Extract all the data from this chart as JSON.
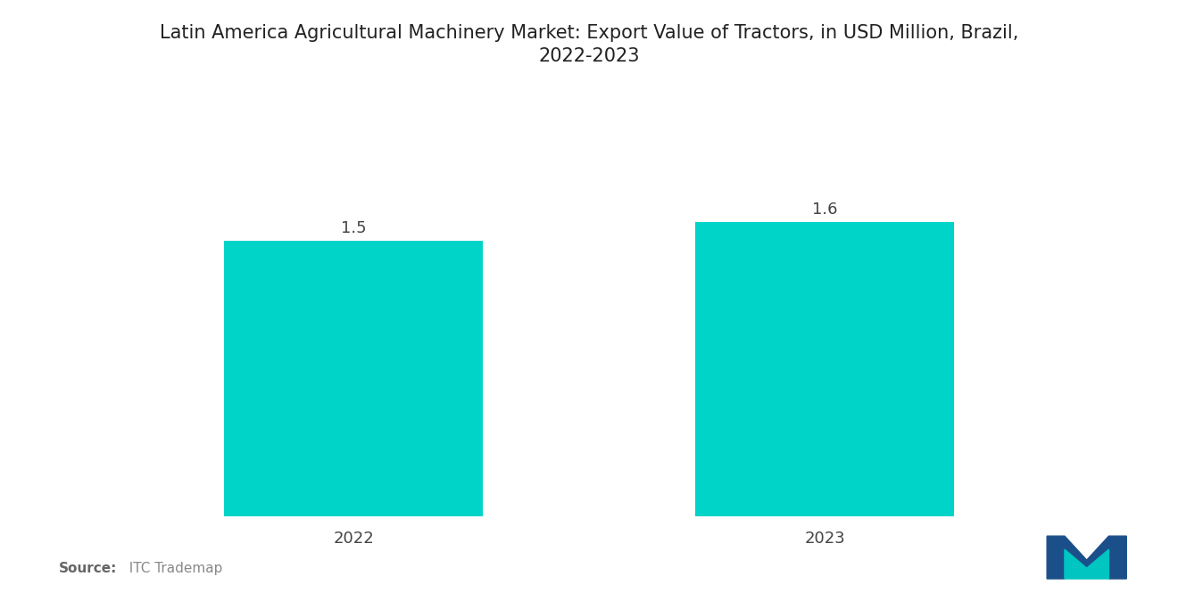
{
  "title_line1": "Latin America Agricultural Machinery Market: Export Value of Tractors, in USD Million, Brazil,",
  "title_line2": "2022-2023",
  "categories": [
    "2022",
    "2023"
  ],
  "values": [
    1.5,
    1.6
  ],
  "bar_color": "#00D4C8",
  "background_color": "#ffffff",
  "title_fontsize": 15,
  "bar_label_fontsize": 13,
  "tick_fontsize": 13,
  "source_bold": "Source:",
  "source_normal": "  ITC Trademap",
  "ylim": [
    0,
    2.1
  ],
  "bar_width": 0.55,
  "x_positions": [
    0,
    1
  ]
}
